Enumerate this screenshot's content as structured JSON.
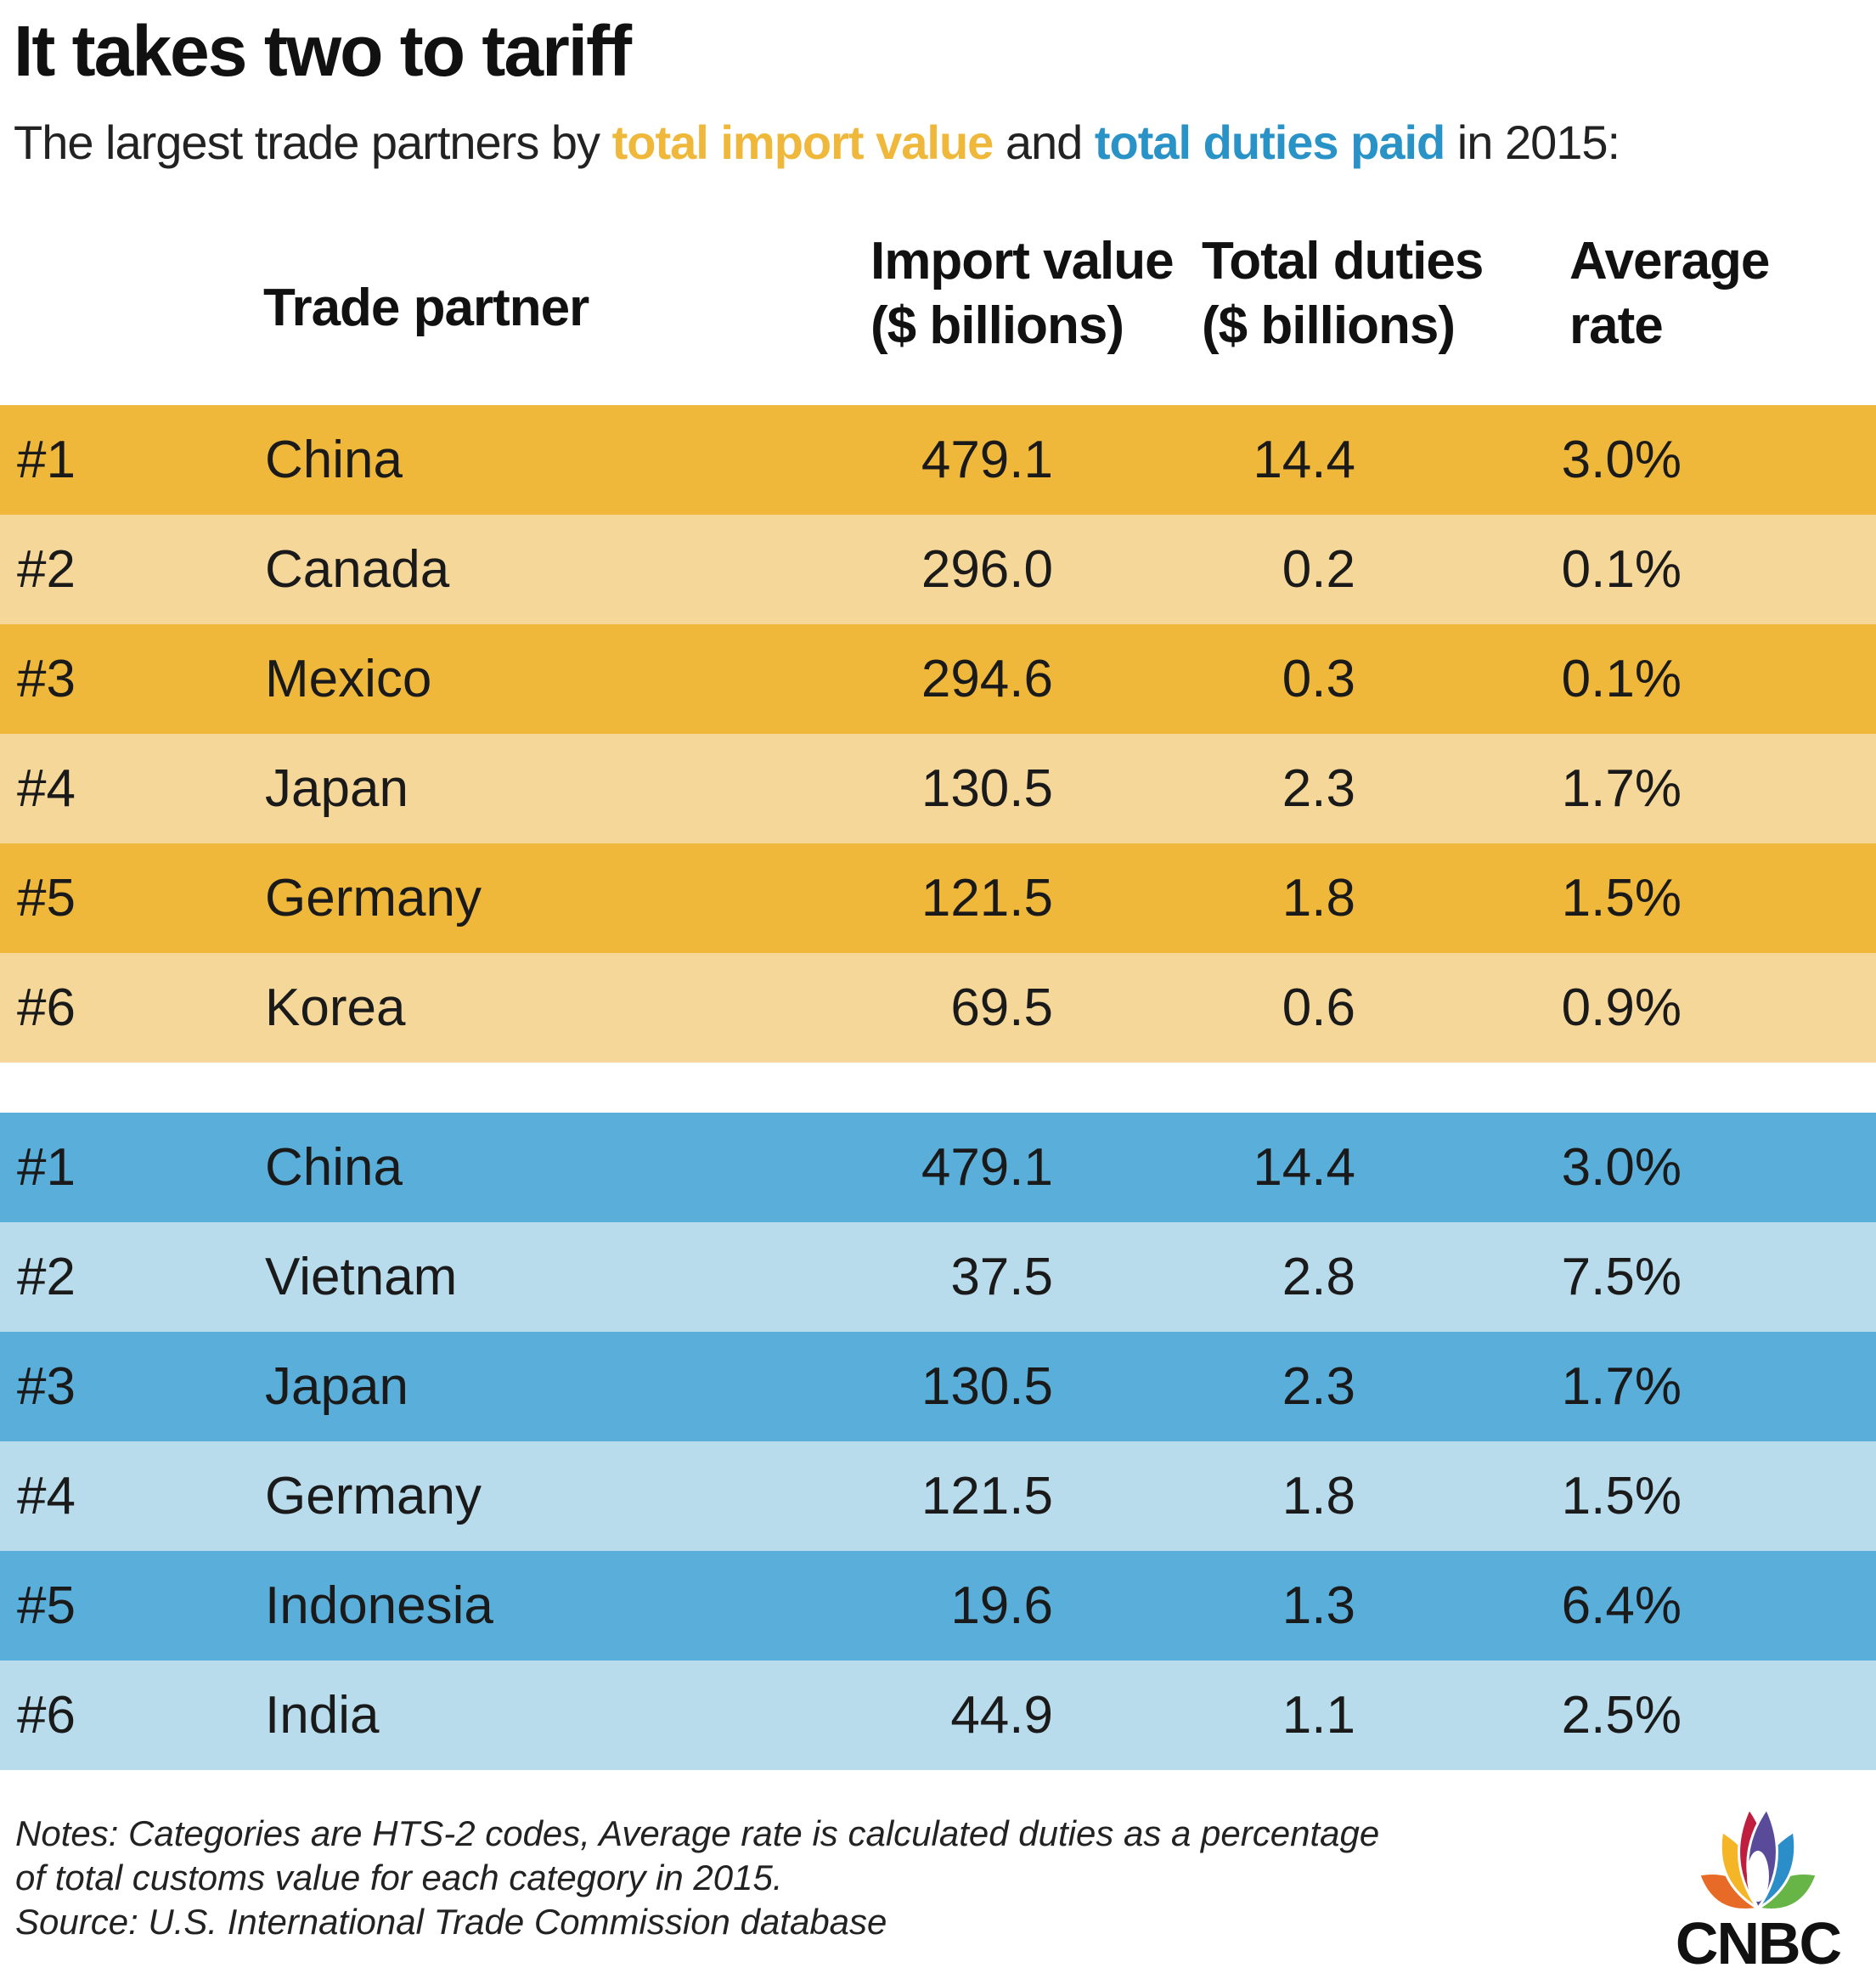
{
  "title": "It takes two to tariff",
  "subtitle": {
    "prefix": "The largest trade partners by ",
    "import_highlight": "total import value",
    "middle": " and ",
    "duties_highlight": "total duties paid",
    "suffix": " in 2015:"
  },
  "colors": {
    "gold_dark": "#f0b83a",
    "gold_light": "#f5d899",
    "blue_dark": "#5aafda",
    "blue_light": "#b8dcec",
    "gold_text": "#f0b83a",
    "blue_text": "#2993c8"
  },
  "headers": {
    "partner": "Trade partner",
    "import_1": "Import value",
    "import_2": "($ billions)",
    "duties_1": "Total duties",
    "duties_2": "($ billions)",
    "rate_1": "Average",
    "rate_2": "rate"
  },
  "chart_data": {
    "type": "table",
    "title": "It takes two to tariff",
    "columns": [
      "",
      "Trade partner",
      "Import value ($ billions)",
      "Total duties ($ billions)",
      "Average rate"
    ],
    "groups": [
      {
        "ranking": "total import value",
        "color": "#f0b83a",
        "rows": [
          {
            "rank": "#1",
            "partner": "China",
            "import": "479.1",
            "duties": "14.4",
            "rate": "3.0%"
          },
          {
            "rank": "#2",
            "partner": "Canada",
            "import": "296.0",
            "duties": "0.2",
            "rate": "0.1%"
          },
          {
            "rank": "#3",
            "partner": "Mexico",
            "import": "294.6",
            "duties": "0.3",
            "rate": "0.1%"
          },
          {
            "rank": "#4",
            "partner": "Japan",
            "import": "130.5",
            "duties": "2.3",
            "rate": "1.7%"
          },
          {
            "rank": "#5",
            "partner": "Germany",
            "import": "121.5",
            "duties": "1.8",
            "rate": "1.5%"
          },
          {
            "rank": "#6",
            "partner": "Korea",
            "import": "69.5",
            "duties": "0.6",
            "rate": "0.9%"
          }
        ]
      },
      {
        "ranking": "total duties paid",
        "color": "#5aafda",
        "rows": [
          {
            "rank": "#1",
            "partner": "China",
            "import": "479.1",
            "duties": "14.4",
            "rate": "3.0%"
          },
          {
            "rank": "#2",
            "partner": "Vietnam",
            "import": "37.5",
            "duties": "2.8",
            "rate": "7.5%"
          },
          {
            "rank": "#3",
            "partner": "Japan",
            "import": "130.5",
            "duties": "2.3",
            "rate": "1.7%"
          },
          {
            "rank": "#4",
            "partner": "Germany",
            "import": "121.5",
            "duties": "1.8",
            "rate": "1.5%"
          },
          {
            "rank": "#5",
            "partner": "Indonesia",
            "import": "19.6",
            "duties": "1.3",
            "rate": "6.4%"
          },
          {
            "rank": "#6",
            "partner": "India",
            "import": "44.9",
            "duties": "1.1",
            "rate": "2.5%"
          }
        ]
      }
    ]
  },
  "notes": {
    "line1": "Notes: Categories are HTS-2 codes, Average rate is calculated duties as a percentage",
    "line2": "of total customs value for each category in 2015.",
    "source": "Source: U.S. International Trade Commission database"
  },
  "logo": {
    "name": "peacock-logo-icon",
    "text": "CNBC",
    "feather_colors": [
      "#e86a27",
      "#f4b526",
      "#bf1e3e",
      "#5a4b9a",
      "#2b8ec8",
      "#66b546"
    ]
  }
}
